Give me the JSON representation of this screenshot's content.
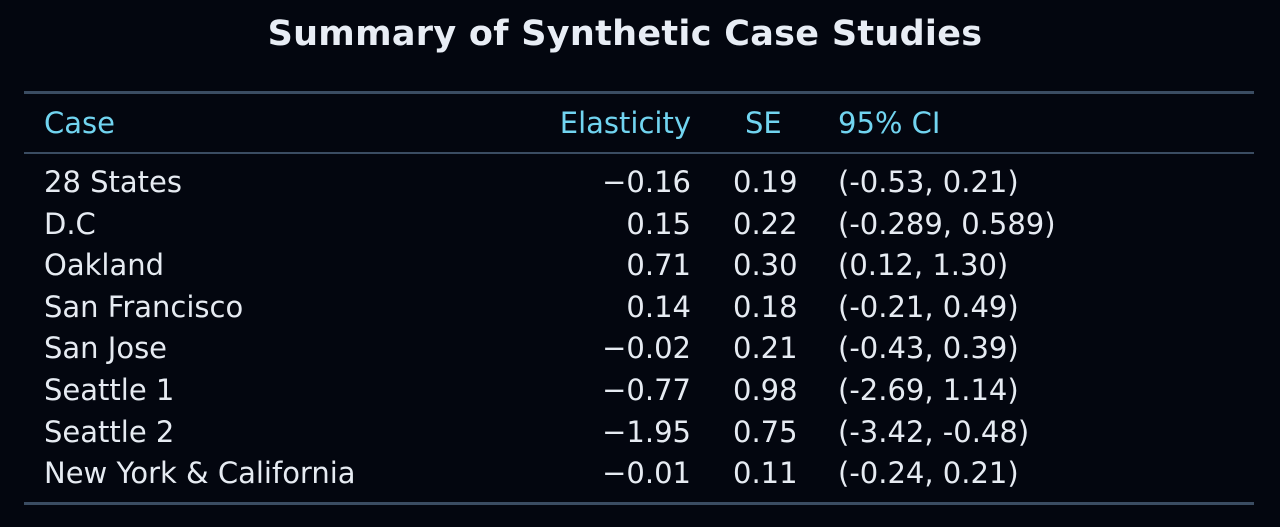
{
  "title": "Summary of Synthetic Case Studies",
  "table": {
    "headers": {
      "case": "Case",
      "elasticity": "Elasticity",
      "se": "SE",
      "ci": "95% CI"
    },
    "rows": [
      {
        "case": "28 States",
        "elasticity": "−0.16",
        "se": "0.19",
        "ci": "(-0.53, 0.21)"
      },
      {
        "case": "D.C",
        "elasticity": "0.15",
        "se": "0.22",
        "ci": "(-0.289, 0.589)"
      },
      {
        "case": "Oakland",
        "elasticity": "0.71",
        "se": "0.30",
        "ci": "(0.12, 1.30)"
      },
      {
        "case": "San Francisco",
        "elasticity": "0.14",
        "se": "0.18",
        "ci": "(-0.21, 0.49)"
      },
      {
        "case": "San Jose",
        "elasticity": "−0.02",
        "se": "0.21",
        "ci": "(-0.43, 0.39)"
      },
      {
        "case": "Seattle 1",
        "elasticity": "−0.77",
        "se": "0.98",
        "ci": "(-2.69, 1.14)"
      },
      {
        "case": "Seattle 2",
        "elasticity": "−1.95",
        "se": "0.75",
        "ci": "(-3.42, -0.48)"
      },
      {
        "case": "New York & California",
        "elasticity": "−0.01",
        "se": "0.11",
        "ci": "(-0.24, 0.21)"
      }
    ]
  },
  "colors": {
    "background": "#03060f",
    "header_text": "#71d4f0",
    "body_text": "#e6ebf2",
    "rule": "#3a4c62"
  }
}
